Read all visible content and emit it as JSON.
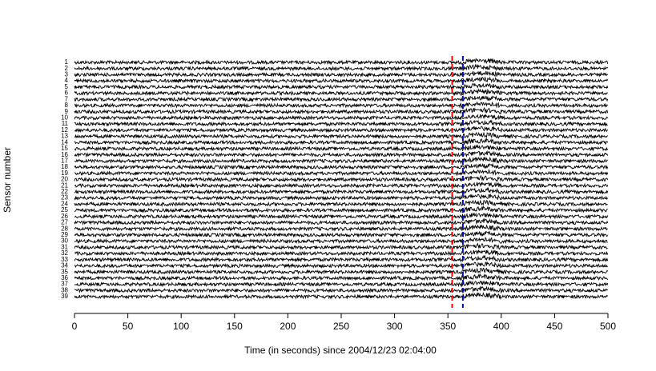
{
  "chart_data": {
    "type": "trace-stack",
    "x_label": "Time (in seconds) since 2004/12/23 02:04:00",
    "y_label": "Sensor number",
    "categories": [
      "1",
      "2",
      "3",
      "4",
      "5",
      "6",
      "7",
      "8",
      "9",
      "10",
      "11",
      "12",
      "13",
      "14",
      "15",
      "16",
      "17",
      "18",
      "19",
      "20",
      "21",
      "22",
      "23",
      "24",
      "25",
      "26",
      "27",
      "28",
      "29",
      "30",
      "31",
      "32",
      "33",
      "34",
      "35",
      "36",
      "37",
      "38",
      "39"
    ],
    "xlim": [
      0,
      500
    ],
    "xticks": [
      0,
      50,
      100,
      150,
      200,
      250,
      300,
      350,
      400,
      450,
      500
    ],
    "vlines": [
      {
        "value": 354,
        "color": "#ff0000"
      },
      {
        "value": 364,
        "color": "#0000cc"
      }
    ]
  }
}
